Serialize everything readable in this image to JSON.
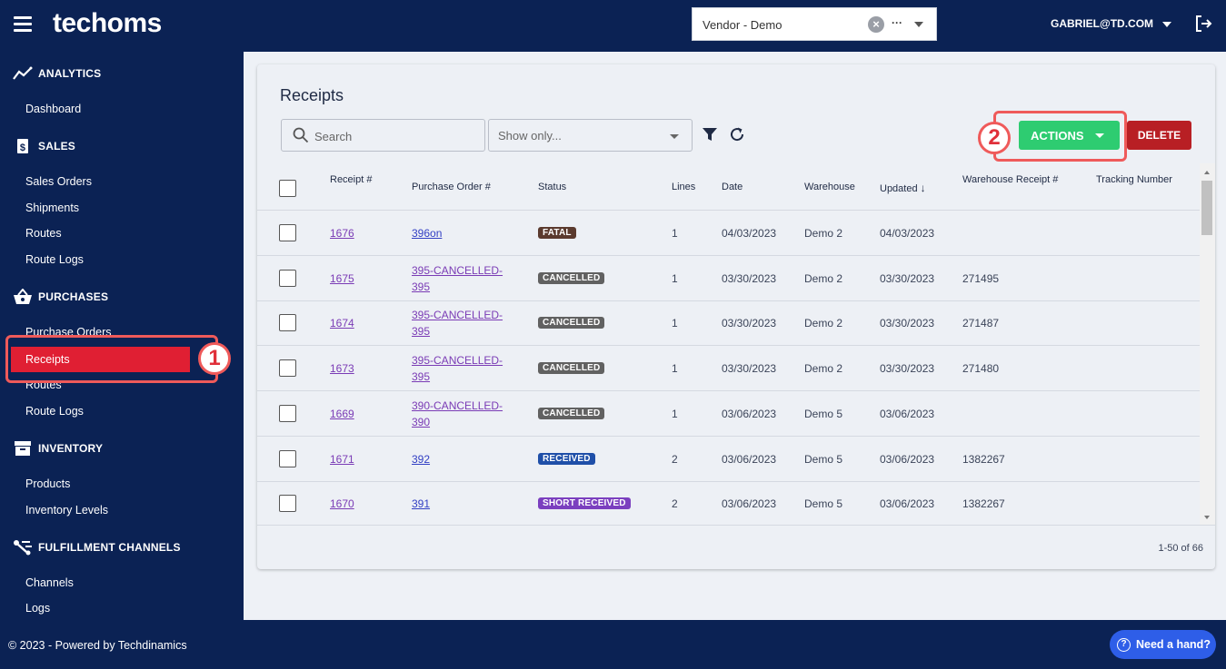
{
  "header": {
    "logo": "techoms",
    "vendor_select": {
      "value": "Vendor - Demo",
      "clear": "×",
      "more": "···"
    },
    "user_email": "GABRIEL@TD.COM"
  },
  "sidebar": {
    "sections": [
      {
        "title": "ANALYTICS",
        "icon": "analytics-icon",
        "items": [
          "Dashboard"
        ]
      },
      {
        "title": "SALES",
        "icon": "dollar-doc-icon",
        "items": [
          "Sales Orders",
          "Shipments",
          "Routes",
          "Route Logs"
        ]
      },
      {
        "title": "PURCHASES",
        "icon": "basket-icon",
        "items": [
          "Purchase Orders",
          "Receipts",
          "Routes",
          "Route Logs"
        ]
      },
      {
        "title": "INVENTORY",
        "icon": "archive-box-icon",
        "items": [
          "Products",
          "Inventory Levels"
        ]
      },
      {
        "title": "FULFILLMENT CHANNELS",
        "icon": "channels-icon",
        "items": [
          "Channels",
          "Logs"
        ]
      }
    ],
    "active_item": "Receipts"
  },
  "callouts": [
    "1",
    "2"
  ],
  "main": {
    "title": "Receipts",
    "search_placeholder": "Search",
    "show_only_placeholder": "Show only...",
    "actions_label": "ACTIONS",
    "delete_label": "DELETE",
    "columns": [
      "Receipt #",
      "Purchase Order #",
      "Status",
      "Lines",
      "Date",
      "Warehouse",
      "Updated",
      "Warehouse Receipt #",
      "Tracking Number"
    ],
    "sort_indicator": "↓",
    "rows": [
      {
        "receipt": "1676",
        "po": [
          "396on"
        ],
        "status": "FATAL",
        "status_color": "#5b3a2e",
        "lines": "1",
        "date": "04/03/2023",
        "warehouse": "Demo 2",
        "updated": "04/03/2023",
        "wh_receipt": "",
        "tracking": ""
      },
      {
        "receipt": "1675",
        "po": [
          "395-CANCELLED-",
          "395"
        ],
        "status": "CANCELLED",
        "status_color": "#616161",
        "lines": "1",
        "date": "03/30/2023",
        "warehouse": "Demo 2",
        "updated": "03/30/2023",
        "wh_receipt": "271495",
        "tracking": ""
      },
      {
        "receipt": "1674",
        "po": [
          "395-CANCELLED-",
          "395"
        ],
        "status": "CANCELLED",
        "status_color": "#616161",
        "lines": "1",
        "date": "03/30/2023",
        "warehouse": "Demo 2",
        "updated": "03/30/2023",
        "wh_receipt": "271487",
        "tracking": ""
      },
      {
        "receipt": "1673",
        "po": [
          "395-CANCELLED-",
          "395"
        ],
        "status": "CANCELLED",
        "status_color": "#616161",
        "lines": "1",
        "date": "03/30/2023",
        "warehouse": "Demo 2",
        "updated": "03/30/2023",
        "wh_receipt": "271480",
        "tracking": ""
      },
      {
        "receipt": "1669",
        "po": [
          "390-CANCELLED-",
          "390"
        ],
        "status": "CANCELLED",
        "status_color": "#616161",
        "lines": "1",
        "date": "03/06/2023",
        "warehouse": "Demo 5",
        "updated": "03/06/2023",
        "wh_receipt": "",
        "tracking": ""
      },
      {
        "receipt": "1671",
        "po": [
          "392"
        ],
        "status": "RECEIVED",
        "status_color": "#1f4fa8",
        "lines": "2",
        "date": "03/06/2023",
        "warehouse": "Demo 5",
        "updated": "03/06/2023",
        "wh_receipt": "1382267",
        "tracking": ""
      },
      {
        "receipt": "1670",
        "po": [
          "391"
        ],
        "status": "SHORT RECEIVED",
        "status_color": "#7b3fbf",
        "lines": "2",
        "date": "03/06/2023",
        "warehouse": "Demo 5",
        "updated": "03/06/2023",
        "wh_receipt": "1382267",
        "tracking": ""
      }
    ],
    "pagination": "1-50 of 66"
  },
  "footer": {
    "copyright": "© 2023 - Powered by Techdinamics",
    "help_label": "Need a hand?",
    "help_icon_glyph": "?"
  }
}
